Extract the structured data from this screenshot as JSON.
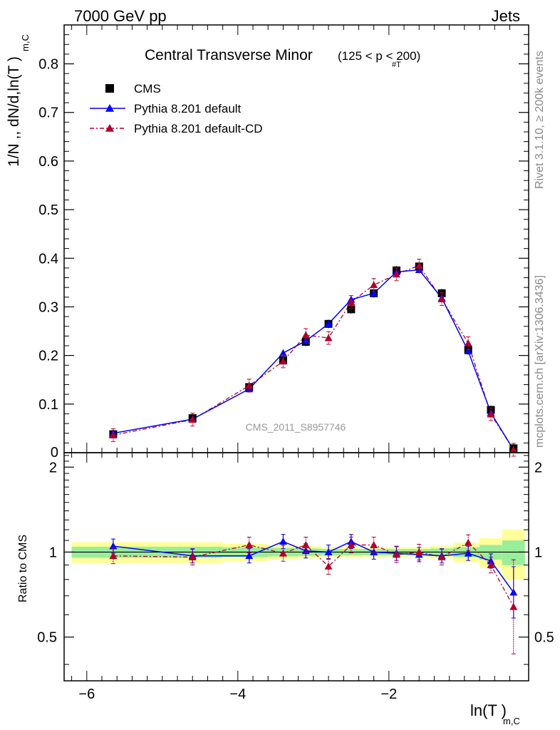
{
  "header": {
    "energy": "7000 GeV pp",
    "process": "Jets",
    "side_rivet": "Rivet 3.1.10, ≥ 200k events",
    "side_mcplots": "mcplots.cern.ch [arXiv:1306.3436]",
    "watermark": "CMS_2011_S8957746"
  },
  "chart_data": [
    {
      "type": "scatter",
      "panel": "main",
      "title": "Central Transverse Minor",
      "subtitle_cut": "(125 < p  < 200)",
      "subtitle_sub": "#T",
      "ylabel": "1/N ,, dN/d,ln(T  )",
      "ylabel_sub": "m,C",
      "xlim": [
        -6.3,
        -0.15
      ],
      "ylim": [
        0,
        0.88
      ],
      "yticks": [
        0.1,
        0.2,
        0.3,
        0.4,
        0.5,
        0.6,
        0.7,
        0.8
      ],
      "ytick_labels": [
        "0.1",
        "0.2",
        "0.3",
        "0.4",
        "0.5",
        "0.6",
        "0.7",
        "0.8"
      ],
      "ytick_zero_label": "0",
      "legend": {
        "placement": "top-left",
        "items": [
          {
            "label": "CMS",
            "marker": "square",
            "color": "#000000"
          },
          {
            "label": "Pythia 8.201 default",
            "marker": "triangle",
            "color": "#0000ff",
            "line": "solid"
          },
          {
            "label": "Pythia 8.201 default-CD",
            "marker": "triangle",
            "color": "#b0002a",
            "line": "dashdot"
          }
        ]
      },
      "x": [
        -5.65,
        -4.6,
        -3.85,
        -3.4,
        -3.1,
        -2.8,
        -2.5,
        -2.2,
        -1.9,
        -1.6,
        -1.3,
        -0.95,
        -0.65,
        -0.35
      ],
      "series": [
        {
          "name": "CMS",
          "values": [
            0.038,
            0.071,
            0.135,
            0.19,
            0.228,
            0.265,
            0.295,
            0.328,
            0.375,
            0.383,
            0.328,
            0.212,
            0.088,
            0.009
          ]
        },
        {
          "name": "Pythia 8.201 default",
          "values": [
            0.04,
            0.069,
            0.131,
            0.205,
            0.23,
            0.265,
            0.315,
            0.328,
            0.372,
            0.376,
            0.318,
            0.209,
            0.082,
            0.006
          ]
        },
        {
          "name": "Pythia 8.201 default-CD",
          "values": [
            0.036,
            0.068,
            0.138,
            0.188,
            0.242,
            0.236,
            0.31,
            0.345,
            0.367,
            0.385,
            0.316,
            0.225,
            0.079,
            0.006
          ]
        }
      ]
    },
    {
      "type": "scatter",
      "panel": "ratio",
      "ylabel": "Ratio to CMS",
      "xlabel": "ln(T  )",
      "xlabel_sub": "m,C",
      "xlim": [
        -6.3,
        -0.15
      ],
      "ylim": [
        0.35,
        2.25
      ],
      "yscale": "log",
      "xticks": [
        -6,
        -4,
        -2
      ],
      "xtick_labels": [
        "−6",
        "−4",
        "−2"
      ],
      "yticks": [
        0.5,
        1,
        2
      ],
      "ytick_labels": [
        "0.5",
        "1",
        "2"
      ],
      "bands": {
        "x_edges": [
          -6.2,
          -5.1,
          -4.2,
          -3.6,
          -3.2,
          -2.9,
          -2.6,
          -2.35,
          -2.05,
          -1.75,
          -1.45,
          -1.15,
          -0.8,
          -0.5,
          -0.2
        ],
        "green_half_width": [
          0.045,
          0.045,
          0.04,
          0.035,
          0.03,
          0.025,
          0.025,
          0.025,
          0.025,
          0.025,
          0.03,
          0.04,
          0.06,
          0.1
        ],
        "yellow_half_width": [
          0.085,
          0.085,
          0.07,
          0.06,
          0.05,
          0.04,
          0.04,
          0.04,
          0.04,
          0.04,
          0.05,
          0.08,
          0.12,
          0.2
        ],
        "green_color": "#99ee99",
        "yellow_color": "#ffff99"
      },
      "series": [
        {
          "name": "Pythia 8.201 default",
          "values": [
            1.05,
            0.97,
            0.97,
            1.09,
            1.01,
            1.0,
            1.09,
            1.0,
            0.99,
            0.98,
            0.97,
            0.99,
            0.93,
            0.72
          ]
        },
        {
          "name": "Pythia 8.201 default-CD",
          "values": [
            0.97,
            0.96,
            1.06,
            0.99,
            1.06,
            0.89,
            1.06,
            1.06,
            0.98,
            1.0,
            0.96,
            1.08,
            0.9,
            0.64
          ]
        }
      ]
    }
  ]
}
